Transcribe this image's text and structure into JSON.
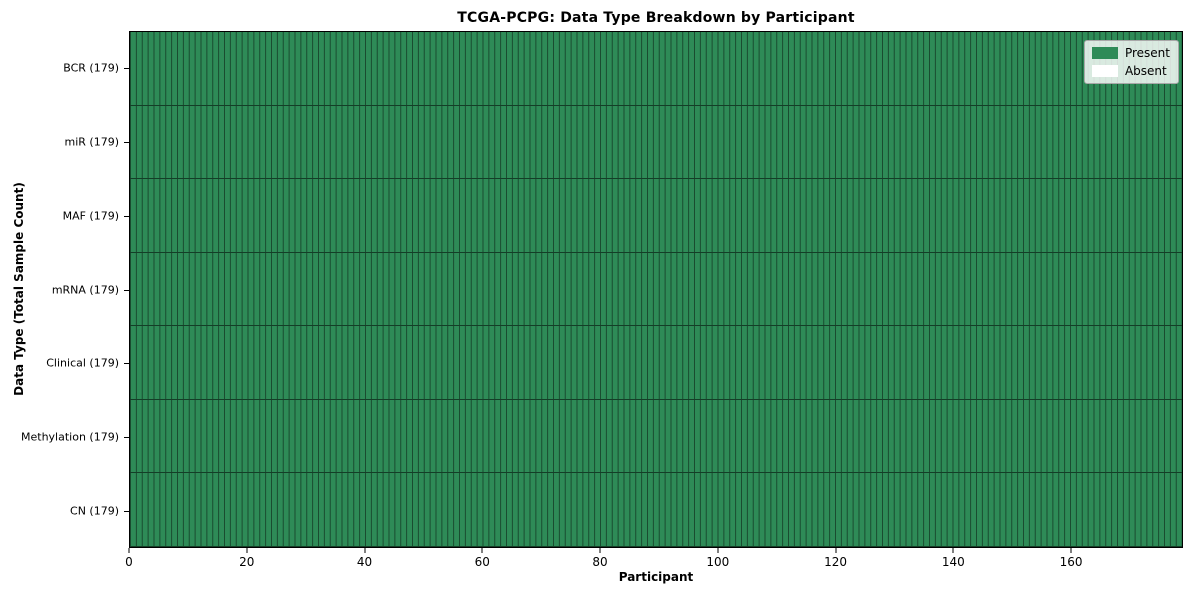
{
  "title": "TCGA-PCPG: Data Type Breakdown by Participant",
  "x_axis": {
    "label": "Participant",
    "tick_values": [
      0,
      20,
      40,
      60,
      80,
      100,
      120,
      140,
      160
    ],
    "max": 179
  },
  "y_axis": {
    "label": "Data Type (Total Sample Count)"
  },
  "legend": {
    "items": [
      {
        "label": "Present",
        "color": "#2e8b57"
      },
      {
        "label": "Absent",
        "color": "#ffffff"
      }
    ]
  },
  "chart_data": {
    "type": "heatmap",
    "title": "TCGA-PCPG: Data Type Breakdown by Participant",
    "xlabel": "Participant",
    "ylabel": "Data Type (Total Sample Count)",
    "x_range": [
      0,
      179
    ],
    "n_participants": 179,
    "rows_top_to_bottom": [
      {
        "label": "BCR (179)",
        "data_type": "BCR",
        "total_samples": 179,
        "present_count": 179,
        "absent_count": 0
      },
      {
        "label": "miR (179)",
        "data_type": "miR",
        "total_samples": 179,
        "present_count": 179,
        "absent_count": 0
      },
      {
        "label": "MAF (179)",
        "data_type": "MAF",
        "total_samples": 179,
        "present_count": 179,
        "absent_count": 0
      },
      {
        "label": "mRNA (179)",
        "data_type": "mRNA",
        "total_samples": 179,
        "present_count": 179,
        "absent_count": 0
      },
      {
        "label": "Clinical (179)",
        "data_type": "Clinical",
        "total_samples": 179,
        "present_count": 179,
        "absent_count": 0
      },
      {
        "label": "Methylation (179)",
        "data_type": "Methylation",
        "total_samples": 179,
        "present_count": 179,
        "absent_count": 0
      },
      {
        "label": "CN (179)",
        "data_type": "CN",
        "total_samples": 179,
        "present_count": 179,
        "absent_count": 0
      }
    ],
    "cells": "every cell is Present (value 1) for all 179 participants across all 7 data types",
    "colors": {
      "present": "#2e8b57",
      "absent": "#ffffff"
    },
    "legend_position": "upper right",
    "grid": "dark cell borders between each participant column and each data-type row"
  }
}
